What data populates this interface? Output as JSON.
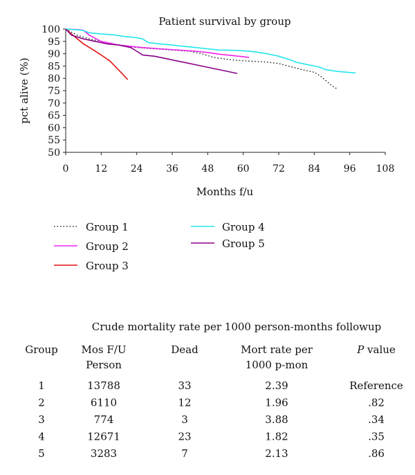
{
  "chart_data": {
    "type": "line",
    "title": "Patient survival by group",
    "xlabel": "Months f/u",
    "ylabel": "pct alive (%)",
    "xlim": [
      0,
      108
    ],
    "ylim": [
      50,
      100
    ],
    "xticks": [
      0,
      12,
      24,
      36,
      48,
      60,
      72,
      84,
      96,
      108
    ],
    "yticks": [
      50,
      55,
      60,
      65,
      70,
      75,
      80,
      85,
      90,
      95,
      100
    ],
    "grid": false,
    "legend_position": "bottom",
    "series": [
      {
        "name": "Group 1",
        "color": "#000000",
        "style": "dotted",
        "x": [
          0,
          4,
          8,
          12,
          16,
          20,
          24,
          30,
          36,
          42,
          46,
          50,
          56,
          62,
          68,
          72,
          76,
          80,
          84,
          86,
          88,
          90,
          92
        ],
        "y": [
          100,
          97.5,
          96,
          95,
          94,
          93.2,
          92.5,
          92,
          91.5,
          91,
          90,
          88.5,
          87.5,
          87,
          86.6,
          86,
          84.8,
          83.5,
          82.5,
          81,
          79,
          77,
          75.5
        ]
      },
      {
        "name": "Group 2",
        "color": "#ee22ee",
        "style": "solid",
        "x": [
          0,
          4,
          6,
          8,
          12,
          18,
          22,
          26,
          32,
          38,
          44,
          48,
          52,
          56,
          60,
          62
        ],
        "y": [
          100,
          99.8,
          99.5,
          97.5,
          95,
          93.5,
          93,
          92.5,
          92,
          91.5,
          91,
          90.5,
          89.8,
          89.3,
          88.8,
          88.5
        ]
      },
      {
        "name": "Group 3",
        "color": "#e01010",
        "style": "solid",
        "x": [
          0,
          3,
          6,
          9,
          12,
          15,
          17,
          19,
          21
        ],
        "y": [
          100,
          97,
          94,
          91.8,
          89.5,
          87,
          84.5,
          82,
          79.5
        ]
      },
      {
        "name": "Group 4",
        "color": "#22e5ee",
        "style": "solid",
        "x": [
          0,
          4,
          6,
          8,
          12,
          16,
          20,
          24,
          26,
          28,
          32,
          36,
          40,
          44,
          48,
          52,
          56,
          60,
          64,
          68,
          72,
          76,
          78,
          80,
          84,
          86,
          88,
          92,
          96,
          98
        ],
        "y": [
          100,
          99.7,
          99.4,
          98.5,
          98,
          97.7,
          97,
          96.5,
          96,
          94.5,
          94,
          93.5,
          93,
          92.5,
          92,
          91.5,
          91.4,
          91.2,
          90.8,
          90,
          89,
          87.5,
          86.5,
          86,
          85,
          84.5,
          83.5,
          82.8,
          82.4,
          82.2
        ]
      },
      {
        "name": "Group 5",
        "color": "#880088",
        "style": "solid",
        "x": [
          0,
          2,
          6,
          10,
          14,
          18,
          22,
          24,
          26,
          30,
          34,
          38,
          42,
          46,
          50,
          54,
          58
        ],
        "y": [
          100,
          97.5,
          96,
          95,
          94,
          93.5,
          92.5,
          91,
          89.5,
          89,
          88,
          87,
          86,
          85,
          84,
          83,
          82
        ]
      }
    ]
  },
  "table": {
    "caption": "Crude mortality rate per 1000 person-months followup",
    "headers": [
      {
        "line1": "Group",
        "line2": ""
      },
      {
        "line1": "Mos F/U",
        "line2": "Person"
      },
      {
        "line1": "Dead",
        "line2": ""
      },
      {
        "line1": "Mort rate per",
        "line2": "1000 p-mon"
      },
      {
        "line1": "P",
        "line1_suffix": " value",
        "line2": ""
      }
    ],
    "rows": [
      [
        "1",
        "13788",
        "33",
        "2.39",
        "Reference"
      ],
      [
        "2",
        "6110",
        "12",
        "1.96",
        ".82"
      ],
      [
        "3",
        "774",
        "3",
        "3.88",
        ".34"
      ],
      [
        "4",
        "12671",
        "23",
        "1.82",
        ".35"
      ],
      [
        "5",
        "3283",
        "7",
        "2.13",
        ".86"
      ]
    ]
  }
}
